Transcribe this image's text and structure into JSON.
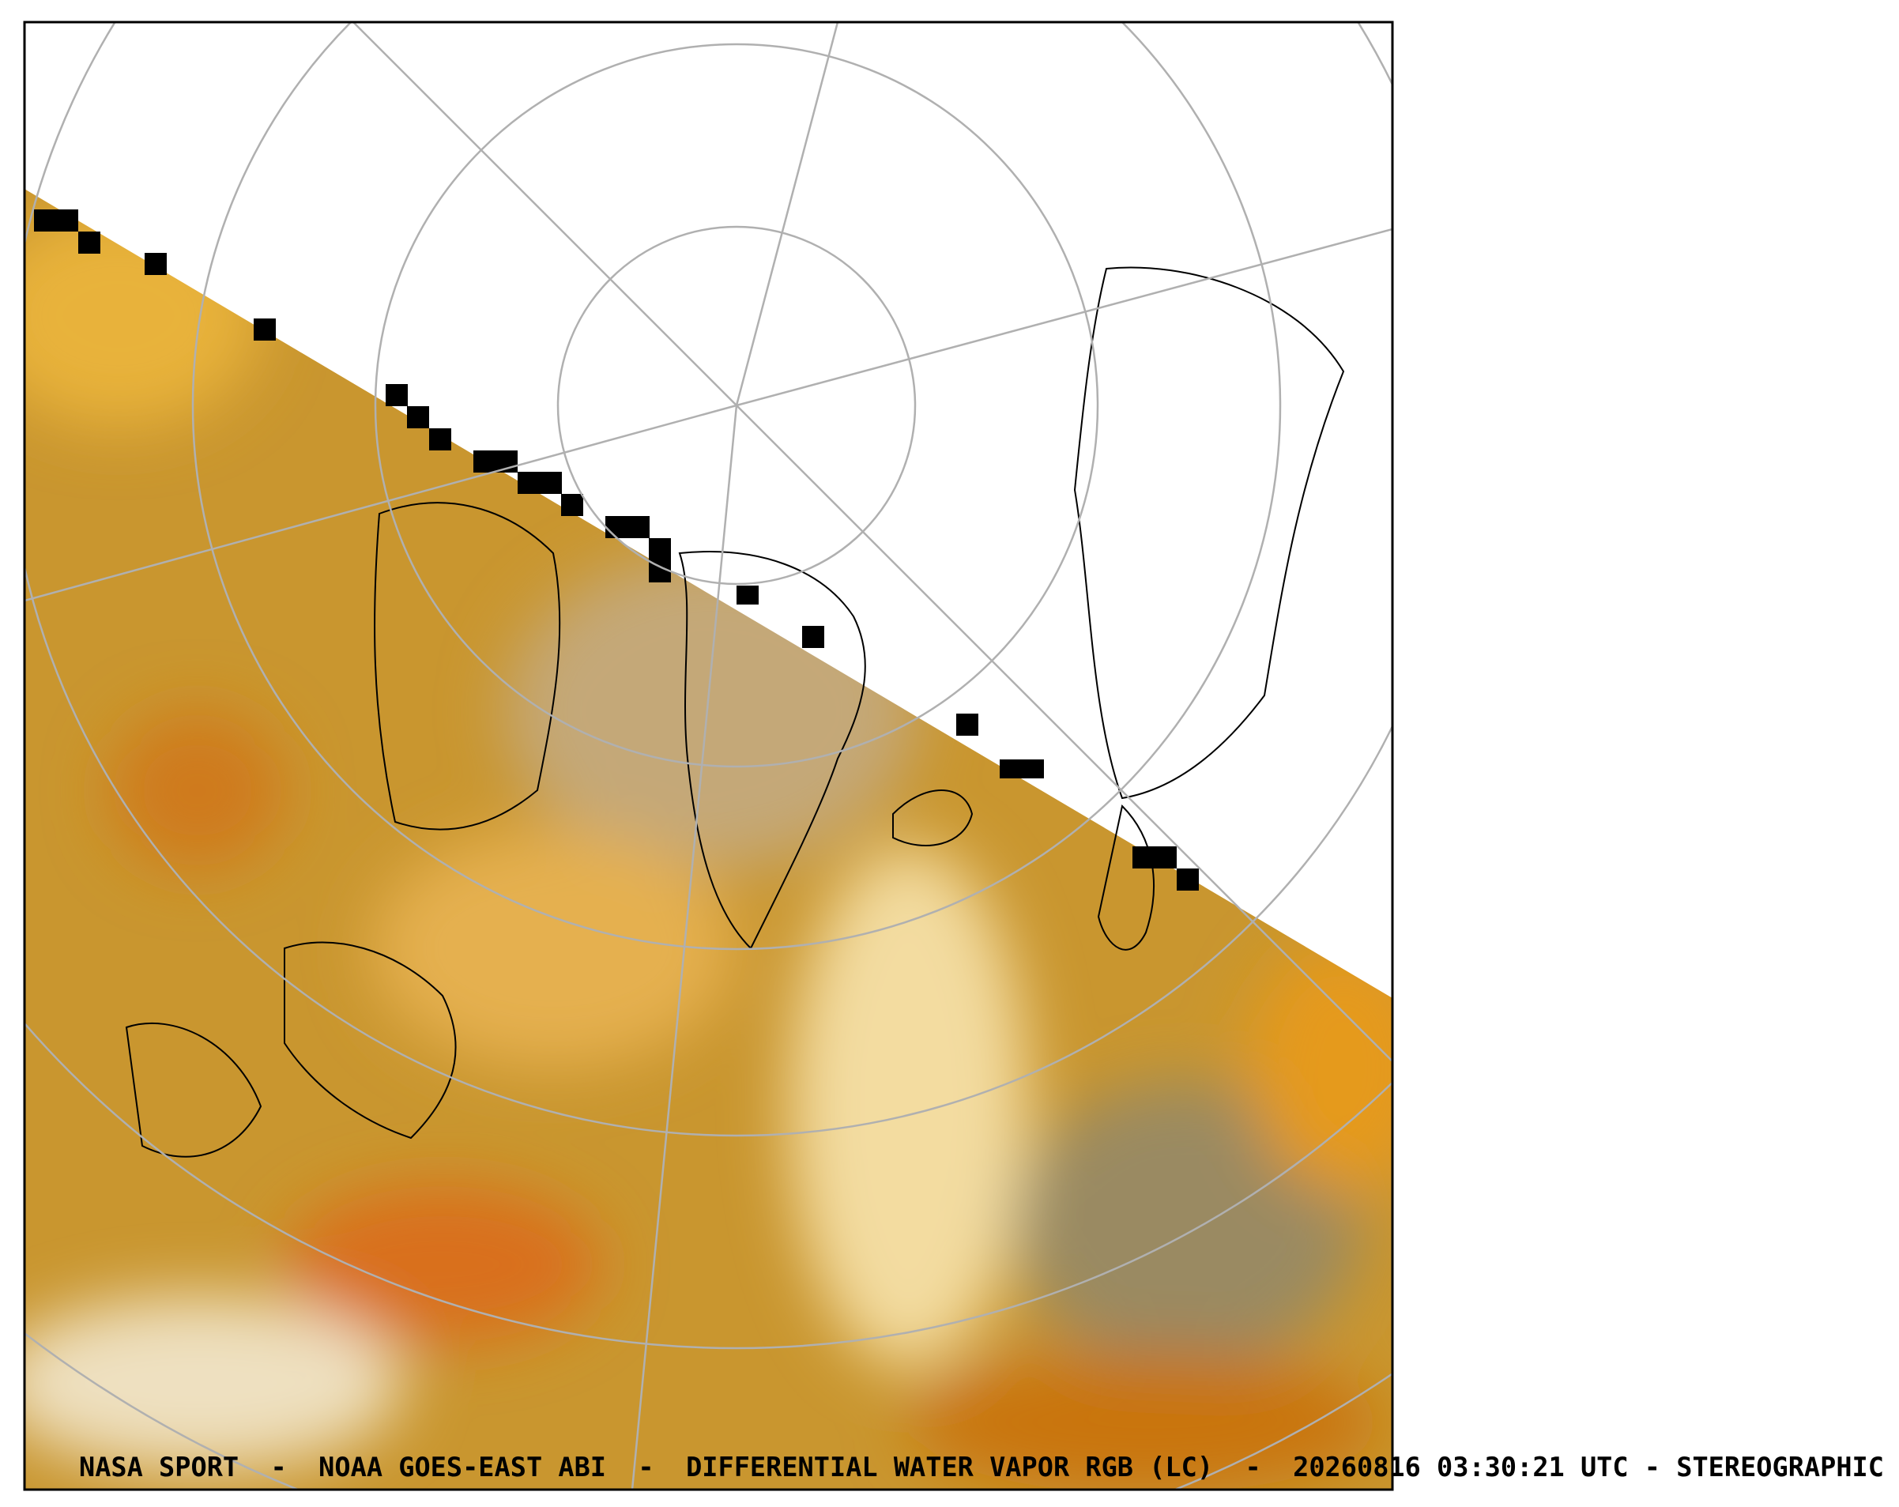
{
  "caption": "NASA SPORT  -  NOAA GOES-EAST ABI  -  DIFFERENTIAL WATER VAPOR RGB (LC)  -  20260816 03:30:21 UTC - STEREOGRAPHIC"
}
